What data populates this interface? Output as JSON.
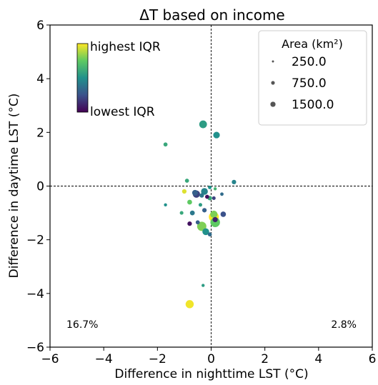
{
  "chart_data": {
    "type": "scatter",
    "title": "ΔT based on income",
    "xlabel": "Difference in nighttime LST (°C)",
    "ylabel": "Difference in daytime LST (°C)",
    "xlim": [
      -6,
      6
    ],
    "ylim": [
      -6,
      6
    ],
    "xticks": [
      "−6",
      "−4",
      "−2",
      "0",
      "2",
      "4",
      "6"
    ],
    "yticks": [
      "−6",
      "−4",
      "−2",
      "0",
      "2",
      "4",
      "6"
    ],
    "xtick_values": [
      -6,
      -4,
      -2,
      0,
      2,
      4,
      6
    ],
    "ytick_values": [
      -6,
      -4,
      -2,
      0,
      2,
      4,
      6
    ],
    "reference_lines": {
      "x": 0,
      "y": 0,
      "style": "dashed"
    },
    "colormap": "viridis",
    "colorbar": {
      "high_label": "highest IQR",
      "low_label": "lowest IQR",
      "placement": "top-left"
    },
    "legend": {
      "title": "Area (km²)",
      "placement": "top-right",
      "entries": [
        {
          "label": "250.0",
          "area": 250
        },
        {
          "label": "750.0",
          "area": 750
        },
        {
          "label": "1500.0",
          "area": 1500
        }
      ]
    },
    "annotations": [
      {
        "text": "16.7%",
        "position": "bottom-left"
      },
      {
        "text": "2.8%",
        "position": "bottom-right"
      }
    ],
    "points": [
      {
        "x": -0.3,
        "y": 2.3,
        "iqr": 0.55,
        "area": 900
      },
      {
        "x": 0.2,
        "y": 1.9,
        "iqr": 0.5,
        "area": 650
      },
      {
        "x": -1.7,
        "y": 1.55,
        "iqr": 0.6,
        "area": 250
      },
      {
        "x": -0.9,
        "y": 0.2,
        "iqr": 0.6,
        "area": 250
      },
      {
        "x": 0.85,
        "y": 0.15,
        "iqr": 0.45,
        "area": 300
      },
      {
        "x": -0.05,
        "y": -0.05,
        "iqr": 0.5,
        "area": 200
      },
      {
        "x": 0.15,
        "y": -0.1,
        "iqr": 0.65,
        "area": 150
      },
      {
        "x": -1.0,
        "y": -0.2,
        "iqr": 0.95,
        "area": 300
      },
      {
        "x": -0.25,
        "y": -0.2,
        "iqr": 0.45,
        "area": 700
      },
      {
        "x": -0.55,
        "y": -0.3,
        "iqr": 0.2,
        "area": 800
      },
      {
        "x": -0.6,
        "y": -0.25,
        "iqr": 0.3,
        "area": 500
      },
      {
        "x": -0.35,
        "y": -0.35,
        "iqr": 0.4,
        "area": 300
      },
      {
        "x": -0.15,
        "y": -0.4,
        "iqr": 0.05,
        "area": 250
      },
      {
        "x": -0.05,
        "y": -0.45,
        "iqr": 0.6,
        "area": 300
      },
      {
        "x": 0.1,
        "y": -0.45,
        "iqr": 0.2,
        "area": 200
      },
      {
        "x": 0.4,
        "y": -0.3,
        "iqr": 0.35,
        "area": 180
      },
      {
        "x": -0.8,
        "y": -0.6,
        "iqr": 0.75,
        "area": 350
      },
      {
        "x": -1.7,
        "y": -0.7,
        "iqr": 0.5,
        "area": 150
      },
      {
        "x": -0.4,
        "y": -0.7,
        "iqr": 0.55,
        "area": 200
      },
      {
        "x": -0.25,
        "y": -0.9,
        "iqr": 0.3,
        "area": 300
      },
      {
        "x": -0.7,
        "y": -1.0,
        "iqr": 0.4,
        "area": 350
      },
      {
        "x": -1.1,
        "y": -1.0,
        "iqr": 0.6,
        "area": 200
      },
      {
        "x": 0.45,
        "y": -1.05,
        "iqr": 0.25,
        "area": 450
      },
      {
        "x": 0.1,
        "y": -1.05,
        "iqr": 0.8,
        "area": 800
      },
      {
        "x": 0.1,
        "y": -1.15,
        "iqr": 1.0,
        "area": 1500
      },
      {
        "x": 0.15,
        "y": -1.25,
        "iqr": 0.1,
        "area": 400
      },
      {
        "x": 0.15,
        "y": -1.35,
        "iqr": 0.75,
        "area": 1400
      },
      {
        "x": -0.8,
        "y": -1.4,
        "iqr": 0.05,
        "area": 300
      },
      {
        "x": -0.5,
        "y": -1.35,
        "iqr": 0.3,
        "area": 250
      },
      {
        "x": -0.35,
        "y": -1.5,
        "iqr": 0.8,
        "area": 1300
      },
      {
        "x": -0.2,
        "y": -1.7,
        "iqr": 0.5,
        "area": 700
      },
      {
        "x": -0.05,
        "y": -1.8,
        "iqr": 0.35,
        "area": 250
      },
      {
        "x": -0.3,
        "y": -3.7,
        "iqr": 0.55,
        "area": 150
      },
      {
        "x": -0.8,
        "y": -4.4,
        "iqr": 0.98,
        "area": 1000
      }
    ]
  }
}
